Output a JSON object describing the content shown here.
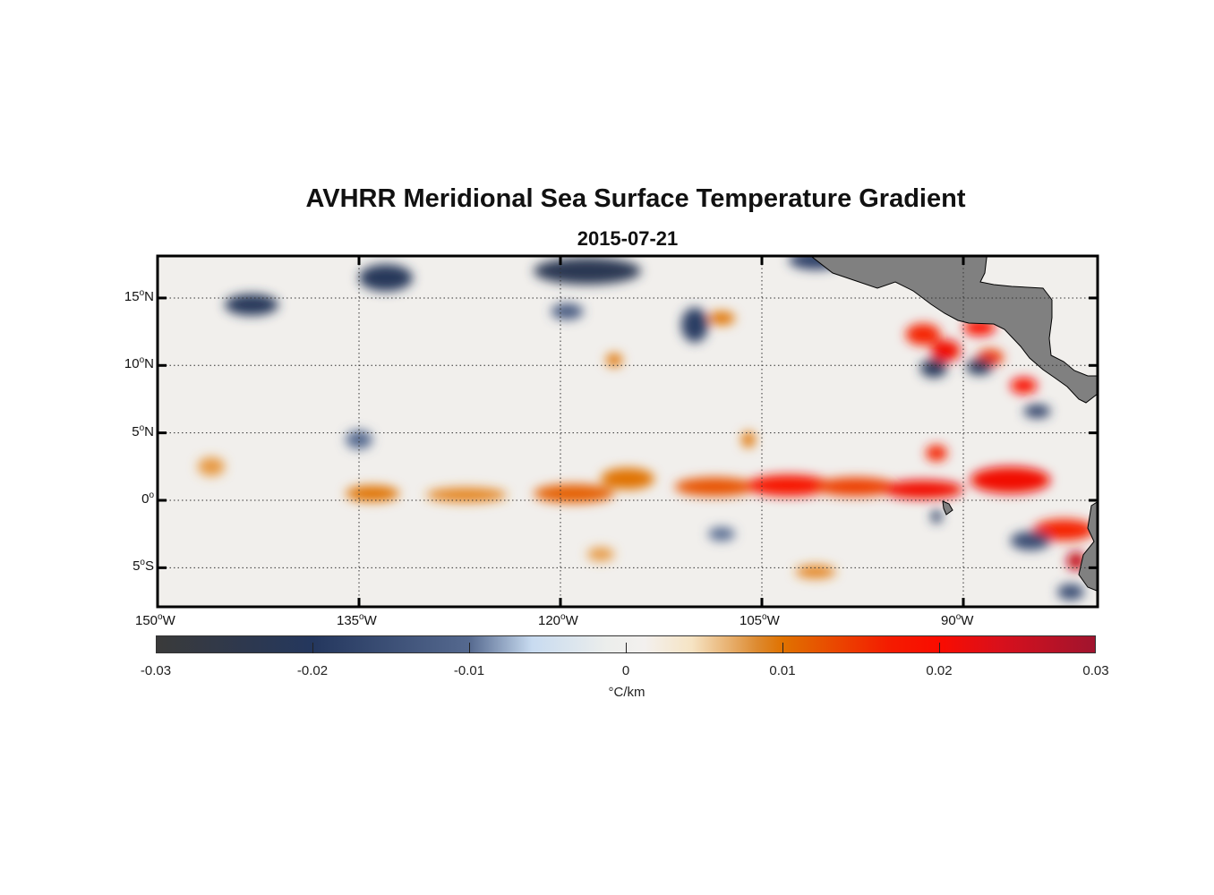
{
  "chart_data": {
    "type": "heatmap",
    "title": "AVHRR Meridional Sea Surface Temperature Gradient",
    "subtitle": "2015-07-21",
    "x_ticks": [
      "150",
      "135",
      "120",
      "105",
      "90"
    ],
    "x_suffix": "W",
    "y_ticks": [
      {
        "v": "15",
        "h": "N"
      },
      {
        "v": "10",
        "h": "N"
      },
      {
        "v": "5",
        "h": "N"
      },
      {
        "v": "0",
        "h": ""
      },
      {
        "v": "5",
        "h": "S"
      }
    ],
    "lon_range_W": [
      150,
      80.1
    ],
    "lat_range": [
      -7.9,
      18.1
    ],
    "grid": "dotted",
    "colorbar": {
      "ticks": [
        "-0.03",
        "-0.02",
        "-0.01",
        "0",
        "0.01",
        "0.02",
        "0.03"
      ],
      "range": [
        -0.03,
        0.03
      ],
      "label": "°C/km"
    },
    "features": [
      {
        "lonW": 134,
        "lat": 0.5,
        "v": 0.01,
        "rx": 2,
        "ry": 0.4
      },
      {
        "lonW": 127,
        "lat": 0.4,
        "v": 0.009,
        "rx": 3,
        "ry": 0.35
      },
      {
        "lonW": 119,
        "lat": 0.5,
        "v": 0.012,
        "rx": 3,
        "ry": 0.5
      },
      {
        "lonW": 115,
        "lat": 1.6,
        "v": 0.01,
        "rx": 2,
        "ry": 0.6
      },
      {
        "lonW": 108.5,
        "lat": 1.0,
        "v": 0.013,
        "rx": 3,
        "ry": 0.5
      },
      {
        "lonW": 103,
        "lat": 1.1,
        "v": 0.019,
        "rx": 3.2,
        "ry": 0.6
      },
      {
        "lonW": 98,
        "lat": 1.0,
        "v": 0.015,
        "rx": 3,
        "ry": 0.5
      },
      {
        "lonW": 93,
        "lat": 0.8,
        "v": 0.021,
        "rx": 3,
        "ry": 0.5
      },
      {
        "lonW": 86.5,
        "lat": 1.5,
        "v": 0.021,
        "rx": 3,
        "ry": 0.8
      },
      {
        "lonW": 82.5,
        "lat": -2.2,
        "v": 0.018,
        "rx": 2.3,
        "ry": 0.6
      },
      {
        "lonW": 81.6,
        "lat": -4.5,
        "v": 0.026,
        "rx": 0.7,
        "ry": 0.5
      },
      {
        "lonW": 93,
        "lat": 12.3,
        "v": 0.018,
        "rx": 1.3,
        "ry": 0.6
      },
      {
        "lonW": 88.8,
        "lat": 12.8,
        "v": 0.02,
        "rx": 1.2,
        "ry": 0.4
      },
      {
        "lonW": 91.3,
        "lat": 11.1,
        "v": 0.021,
        "rx": 1.1,
        "ry": 0.6
      },
      {
        "lonW": 88,
        "lat": 10.6,
        "v": 0.016,
        "rx": 1,
        "ry": 0.4
      },
      {
        "lonW": 85.5,
        "lat": 8.5,
        "v": 0.02,
        "rx": 1,
        "ry": 0.4
      },
      {
        "lonW": 92,
        "lat": 3.5,
        "v": 0.018,
        "rx": 0.8,
        "ry": 0.4
      },
      {
        "lonW": 106,
        "lat": 4.5,
        "v": 0.01,
        "rx": 0.5,
        "ry": 0.4
      },
      {
        "lonW": 108,
        "lat": 13.5,
        "v": 0.01,
        "rx": 1,
        "ry": 0.3
      },
      {
        "lonW": 116,
        "lat": 10.4,
        "v": 0.01,
        "rx": 0.6,
        "ry": 0.3
      },
      {
        "lonW": 101,
        "lat": -5.3,
        "v": 0.009,
        "rx": 1.5,
        "ry": 0.3
      },
      {
        "lonW": 117,
        "lat": -4,
        "v": 0.008,
        "rx": 1,
        "ry": 0.3
      },
      {
        "lonW": 146,
        "lat": 2.5,
        "v": 0.008,
        "rx": 1,
        "ry": 0.5
      },
      {
        "lonW": 143,
        "lat": 14.5,
        "v": -0.021,
        "rx": 2,
        "ry": 0.6
      },
      {
        "lonW": 133,
        "lat": 16.5,
        "v": -0.021,
        "rx": 2,
        "ry": 0.8
      },
      {
        "lonW": 118,
        "lat": 17.0,
        "v": -0.023,
        "rx": 4,
        "ry": 0.8
      },
      {
        "lonW": 110,
        "lat": 13.0,
        "v": -0.019,
        "rx": 1,
        "ry": 1.1
      },
      {
        "lonW": 101,
        "lat": 17.8,
        "v": -0.018,
        "rx": 2,
        "ry": 0.5
      },
      {
        "lonW": 92.2,
        "lat": 9.8,
        "v": -0.021,
        "rx": 1,
        "ry": 0.5
      },
      {
        "lonW": 88.8,
        "lat": 9.9,
        "v": -0.021,
        "rx": 1,
        "ry": 0.4
      },
      {
        "lonW": 84.5,
        "lat": 6.6,
        "v": -0.018,
        "rx": 1,
        "ry": 0.3
      },
      {
        "lonW": 85,
        "lat": -3.0,
        "v": -0.016,
        "rx": 1.5,
        "ry": 0.5
      },
      {
        "lonW": 119.5,
        "lat": 14.0,
        "v": -0.013,
        "rx": 1.2,
        "ry": 0.4
      },
      {
        "lonW": 92,
        "lat": -1.2,
        "v": -0.019,
        "rx": 0.4,
        "ry": 0.3
      },
      {
        "lonW": 82,
        "lat": -6.8,
        "v": -0.016,
        "rx": 1,
        "ry": 0.4
      },
      {
        "lonW": 135,
        "lat": 4.5,
        "v": -0.01,
        "rx": 1,
        "ry": 0.5
      },
      {
        "lonW": 108,
        "lat": -2.5,
        "v": -0.01,
        "rx": 1,
        "ry": 0.3
      }
    ]
  }
}
